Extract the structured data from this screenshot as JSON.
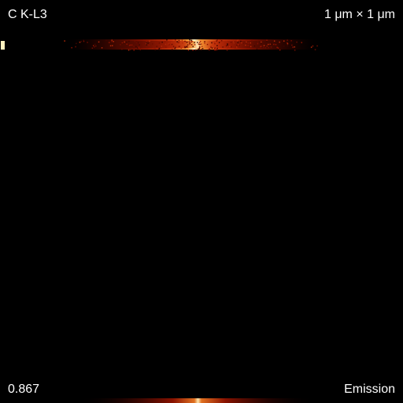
{
  "overlay": {
    "element_line": "C K-L3",
    "scale_text": "1 μm × 1 μm",
    "value_text": "0.867",
    "mode_text": "Emission"
  },
  "colors": {
    "background": "#000000",
    "text": "#ffffff",
    "colormap": [
      "#2a0000",
      "#7a0a00",
      "#c2300a",
      "#e8741a",
      "#ffd080",
      "#fff4d8"
    ]
  }
}
